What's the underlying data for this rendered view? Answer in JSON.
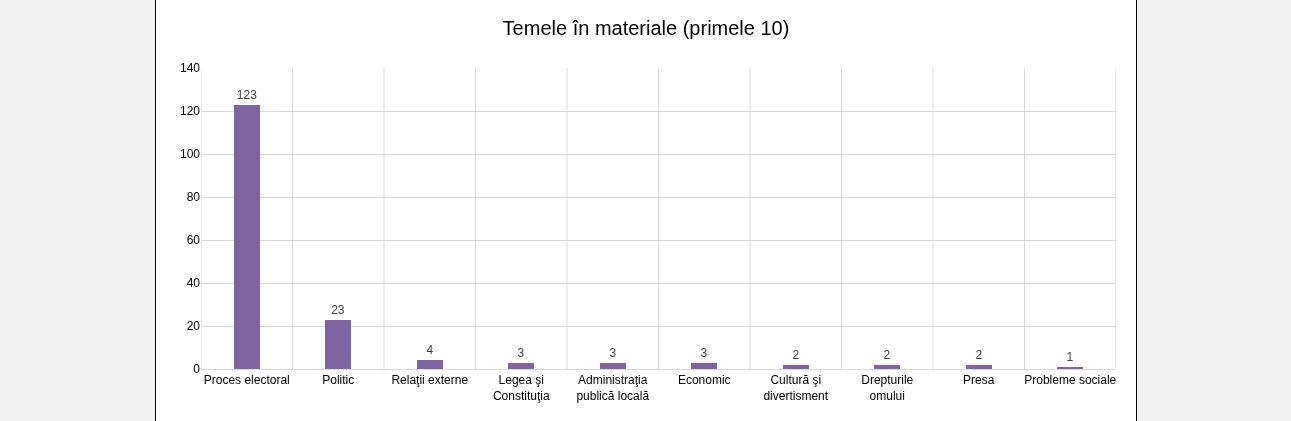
{
  "chart_data": {
    "type": "bar",
    "title": "Temele în materiale (primele 10)",
    "categories": [
      "Proces electoral",
      "Politic",
      "Relaţii externe",
      "Legea şi Constituţia",
      "Administraţia publică locală",
      "Economic",
      "Cultură şi divertisment",
      "Drepturile omului",
      "Presa",
      "Probleme sociale"
    ],
    "values": [
      123,
      23,
      4,
      3,
      3,
      3,
      2,
      2,
      2,
      1
    ],
    "color": "#8064a2",
    "ylim": [
      0,
      140
    ],
    "yticks": [
      0,
      20,
      40,
      60,
      80,
      100,
      120,
      140
    ],
    "grid": true,
    "data_labels": true
  }
}
